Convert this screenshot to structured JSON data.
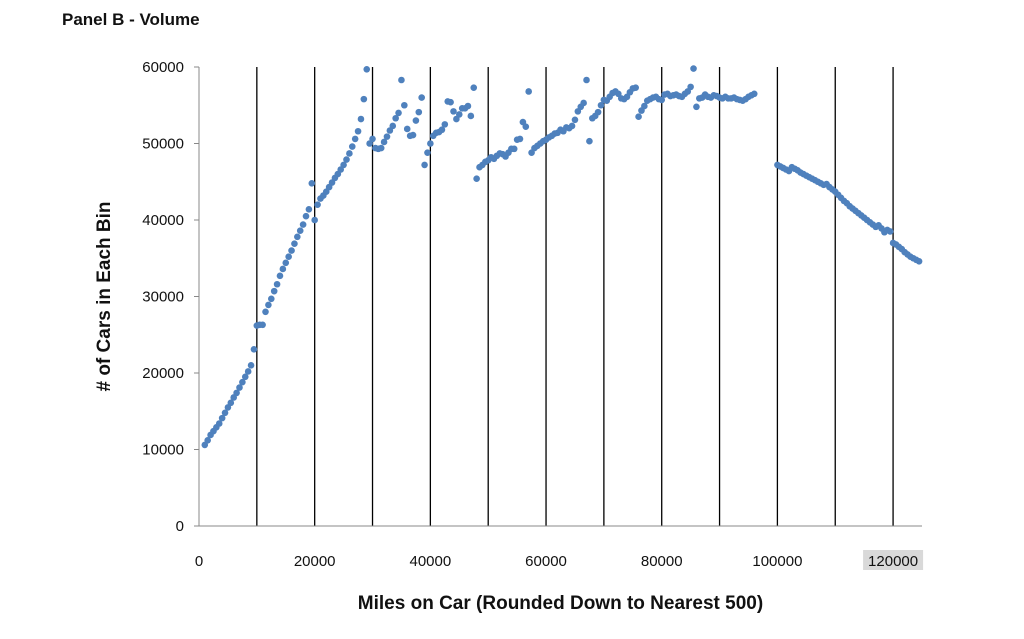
{
  "chart_data": {
    "type": "scatter",
    "title": "Panel B - Volume",
    "xlabel": "Miles on Car (Rounded Down to Nearest 500)",
    "ylabel": "# of Cars in Each Bin",
    "xlim": [
      0,
      125000
    ],
    "ylim": [
      0,
      60000
    ],
    "x_ticks": [
      "0",
      "20000",
      "40000",
      "60000",
      "80000",
      "100000",
      "120000"
    ],
    "x_tick_values": [
      0,
      20000,
      40000,
      60000,
      80000,
      100000,
      120000
    ],
    "y_ticks": [
      "0",
      "10000",
      "20000",
      "30000",
      "40000",
      "50000",
      "60000"
    ],
    "y_tick_values": [
      0,
      10000,
      20000,
      30000,
      40000,
      50000,
      60000
    ],
    "vertical_reference_lines": [
      10000,
      20000,
      30000,
      40000,
      50000,
      60000,
      70000,
      80000,
      90000,
      100000,
      110000,
      120000
    ],
    "highlighted_tick": "120000",
    "marker_color": "#4f81bd",
    "series": [
      {
        "points": [
          [
            1000,
            10600
          ],
          [
            1500,
            11200
          ],
          [
            2000,
            11900
          ],
          [
            2500,
            12400
          ],
          [
            3000,
            12900
          ],
          [
            3500,
            13400
          ],
          [
            4000,
            14100
          ],
          [
            4500,
            14800
          ],
          [
            5000,
            15500
          ],
          [
            5500,
            16100
          ],
          [
            6000,
            16800
          ],
          [
            6500,
            17400
          ],
          [
            7000,
            18100
          ],
          [
            7500,
            18800
          ],
          [
            8000,
            19500
          ],
          [
            8500,
            20200
          ],
          [
            9000,
            21000
          ],
          [
            9500,
            23100
          ],
          [
            10000,
            26200
          ],
          [
            10500,
            26300
          ],
          [
            11000,
            26300
          ],
          [
            11500,
            28000
          ],
          [
            12000,
            28900
          ],
          [
            12500,
            29700
          ],
          [
            13000,
            30700
          ],
          [
            13500,
            31600
          ],
          [
            14000,
            32700
          ],
          [
            14500,
            33600
          ],
          [
            15000,
            34400
          ],
          [
            15500,
            35200
          ],
          [
            16000,
            36000
          ],
          [
            16500,
            36900
          ],
          [
            17000,
            37800
          ],
          [
            17500,
            38600
          ],
          [
            18000,
            39400
          ],
          [
            18500,
            40500
          ],
          [
            19000,
            41400
          ],
          [
            19500,
            44800
          ],
          [
            20000,
            40000
          ],
          [
            20500,
            42000
          ],
          [
            21000,
            42800
          ],
          [
            21500,
            43200
          ],
          [
            22000,
            43700
          ],
          [
            22500,
            44300
          ],
          [
            23000,
            44900
          ],
          [
            23500,
            45500
          ],
          [
            24000,
            46000
          ],
          [
            24500,
            46600
          ],
          [
            25000,
            47200
          ],
          [
            25500,
            47900
          ],
          [
            26000,
            48700
          ],
          [
            26500,
            49600
          ],
          [
            27000,
            50600
          ],
          [
            27500,
            51600
          ],
          [
            28000,
            53200
          ],
          [
            28500,
            55800
          ],
          [
            29000,
            59700
          ],
          [
            29500,
            50000
          ],
          [
            30000,
            50600
          ],
          [
            30500,
            49400
          ],
          [
            31000,
            49300
          ],
          [
            31500,
            49400
          ],
          [
            32000,
            50200
          ],
          [
            32500,
            50900
          ],
          [
            33000,
            51700
          ],
          [
            33500,
            52300
          ],
          [
            34000,
            53300
          ],
          [
            34500,
            54000
          ],
          [
            35000,
            58300
          ],
          [
            35500,
            55000
          ],
          [
            36000,
            51900
          ],
          [
            36500,
            51000
          ],
          [
            37000,
            51100
          ],
          [
            37500,
            53000
          ],
          [
            38000,
            54100
          ],
          [
            38500,
            56000
          ],
          [
            39000,
            47200
          ],
          [
            39500,
            48800
          ],
          [
            40000,
            50000
          ],
          [
            40500,
            51000
          ],
          [
            41000,
            51400
          ],
          [
            41500,
            51500
          ],
          [
            42000,
            51800
          ],
          [
            42500,
            52500
          ],
          [
            43000,
            55500
          ],
          [
            43500,
            55400
          ],
          [
            44000,
            54200
          ],
          [
            44500,
            53200
          ],
          [
            45000,
            53800
          ],
          [
            45500,
            54600
          ],
          [
            46000,
            54600
          ],
          [
            46500,
            54900
          ],
          [
            47000,
            53600
          ],
          [
            47500,
            57300
          ],
          [
            48000,
            45400
          ],
          [
            48500,
            46900
          ],
          [
            49000,
            47200
          ],
          [
            49500,
            47600
          ],
          [
            50000,
            47800
          ],
          [
            50500,
            48200
          ],
          [
            51000,
            48000
          ],
          [
            51500,
            48400
          ],
          [
            52000,
            48700
          ],
          [
            52500,
            48600
          ],
          [
            53000,
            48300
          ],
          [
            53500,
            48800
          ],
          [
            54000,
            49300
          ],
          [
            54500,
            49300
          ],
          [
            55000,
            50500
          ],
          [
            55500,
            50600
          ],
          [
            56000,
            52800
          ],
          [
            56500,
            52200
          ],
          [
            57000,
            56800
          ],
          [
            57500,
            48800
          ],
          [
            58000,
            49400
          ],
          [
            58500,
            49700
          ],
          [
            59000,
            50000
          ],
          [
            59500,
            50300
          ],
          [
            60000,
            50500
          ],
          [
            60500,
            50800
          ],
          [
            61000,
            51000
          ],
          [
            61500,
            51300
          ],
          [
            62000,
            51400
          ],
          [
            62500,
            51800
          ],
          [
            63000,
            51600
          ],
          [
            63500,
            52100
          ],
          [
            64000,
            52000
          ],
          [
            64500,
            52300
          ],
          [
            65000,
            53100
          ],
          [
            65500,
            54200
          ],
          [
            66000,
            54800
          ],
          [
            66500,
            55300
          ],
          [
            67000,
            58300
          ],
          [
            67500,
            50300
          ],
          [
            68000,
            53300
          ],
          [
            68500,
            53600
          ],
          [
            69000,
            54100
          ],
          [
            69500,
            55000
          ],
          [
            70000,
            55700
          ],
          [
            70500,
            55600
          ],
          [
            71000,
            56100
          ],
          [
            71500,
            56600
          ],
          [
            72000,
            56800
          ],
          [
            72500,
            56500
          ],
          [
            73000,
            55900
          ],
          [
            73500,
            55800
          ],
          [
            74000,
            56100
          ],
          [
            74500,
            56700
          ],
          [
            75000,
            57200
          ],
          [
            75500,
            57300
          ],
          [
            76000,
            53500
          ],
          [
            76500,
            54300
          ],
          [
            77000,
            54900
          ],
          [
            77500,
            55600
          ],
          [
            78000,
            55800
          ],
          [
            78500,
            56000
          ],
          [
            79000,
            56100
          ],
          [
            79500,
            55800
          ],
          [
            80000,
            55700
          ],
          [
            80500,
            56400
          ],
          [
            81000,
            56500
          ],
          [
            81500,
            56200
          ],
          [
            82000,
            56300
          ],
          [
            82500,
            56400
          ],
          [
            83000,
            56200
          ],
          [
            83500,
            56100
          ],
          [
            84000,
            56500
          ],
          [
            84500,
            56800
          ],
          [
            85000,
            57400
          ],
          [
            85500,
            59800
          ],
          [
            86000,
            54800
          ],
          [
            86500,
            55900
          ],
          [
            87000,
            56000
          ],
          [
            87500,
            56400
          ],
          [
            88000,
            56100
          ],
          [
            88500,
            56000
          ],
          [
            89000,
            56300
          ],
          [
            89500,
            56200
          ],
          [
            90000,
            56000
          ],
          [
            90500,
            55900
          ],
          [
            91000,
            56100
          ],
          [
            91500,
            55900
          ],
          [
            92000,
            55900
          ],
          [
            92500,
            56000
          ],
          [
            93000,
            55800
          ],
          [
            93500,
            55700
          ],
          [
            94000,
            55600
          ],
          [
            94500,
            55800
          ],
          [
            95000,
            56100
          ],
          [
            95500,
            56300
          ],
          [
            96000,
            56500
          ],
          [
            100000,
            47200
          ],
          [
            100500,
            47000
          ],
          [
            101000,
            46800
          ],
          [
            101500,
            46600
          ],
          [
            102000,
            46400
          ],
          [
            102500,
            46900
          ],
          [
            103000,
            46700
          ],
          [
            103500,
            46500
          ],
          [
            104000,
            46200
          ],
          [
            104500,
            46000
          ],
          [
            105000,
            45800
          ],
          [
            105500,
            45600
          ],
          [
            106000,
            45400
          ],
          [
            106500,
            45200
          ],
          [
            107000,
            45000
          ],
          [
            107500,
            44800
          ],
          [
            108000,
            44600
          ],
          [
            108500,
            44700
          ],
          [
            109000,
            44300
          ],
          [
            109500,
            44000
          ],
          [
            110000,
            43700
          ],
          [
            110500,
            43300
          ],
          [
            111000,
            42900
          ],
          [
            111500,
            42500
          ],
          [
            112000,
            42200
          ],
          [
            112500,
            41800
          ],
          [
            113000,
            41500
          ],
          [
            113500,
            41200
          ],
          [
            114000,
            40900
          ],
          [
            114500,
            40600
          ],
          [
            115000,
            40300
          ],
          [
            115500,
            40000
          ],
          [
            116000,
            39700
          ],
          [
            116500,
            39400
          ],
          [
            117000,
            39100
          ],
          [
            117500,
            39300
          ],
          [
            118000,
            38900
          ],
          [
            118500,
            38400
          ],
          [
            119000,
            38700
          ],
          [
            119500,
            38500
          ],
          [
            120000,
            37000
          ],
          [
            120500,
            36800
          ],
          [
            121000,
            36500
          ],
          [
            121500,
            36200
          ],
          [
            122000,
            35800
          ],
          [
            122500,
            35500
          ],
          [
            123000,
            35200
          ],
          [
            123500,
            35000
          ],
          [
            124000,
            34800
          ],
          [
            124500,
            34600
          ]
        ]
      }
    ]
  }
}
